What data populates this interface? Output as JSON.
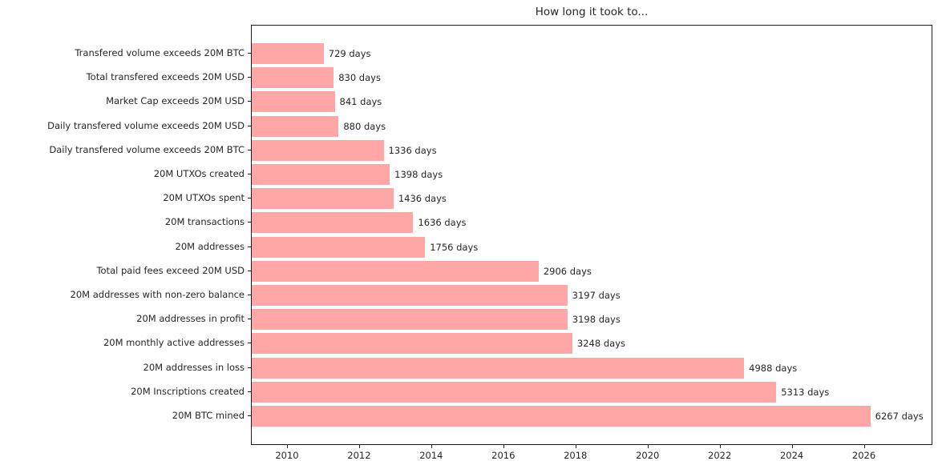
{
  "chart_data": {
    "type": "bar",
    "orientation": "horizontal",
    "title": "How long it took to...",
    "categories": [
      "Transfered volume exceeds 20M BTC",
      "Total transfered exceeds 20M USD",
      "Market Cap exceeds 20M USD",
      "Daily transfered volume exceeds 20M USD",
      "Daily transfered volume exceeds 20M BTC",
      "20M UTXOs created",
      "20M UTXOs spent",
      "20M transactions",
      "20M addresses",
      "Total paid fees exceed 20M USD",
      "20M addresses with non-zero balance",
      "20M addresses in profit",
      "20M monthly active addresses",
      "20M addresses in loss",
      "20M Inscriptions created",
      "20M BTC mined"
    ],
    "values": [
      729,
      830,
      841,
      880,
      1336,
      1398,
      1436,
      1636,
      1756,
      2906,
      3197,
      3198,
      3248,
      4988,
      5313,
      6267
    ],
    "value_unit": "days",
    "value_suffix": " days",
    "x_ticks": [
      2010,
      2012,
      2014,
      2016,
      2018,
      2020,
      2022,
      2024,
      2026
    ],
    "x_axis_start_year": 2009.0,
    "x_axis_end_year": 2027.9,
    "days_per_year": 365.25,
    "bar_color": "#ffa6a6",
    "text_color": "#262626",
    "spine_color": "#1f1f1f",
    "grid": false,
    "legend": null
  }
}
